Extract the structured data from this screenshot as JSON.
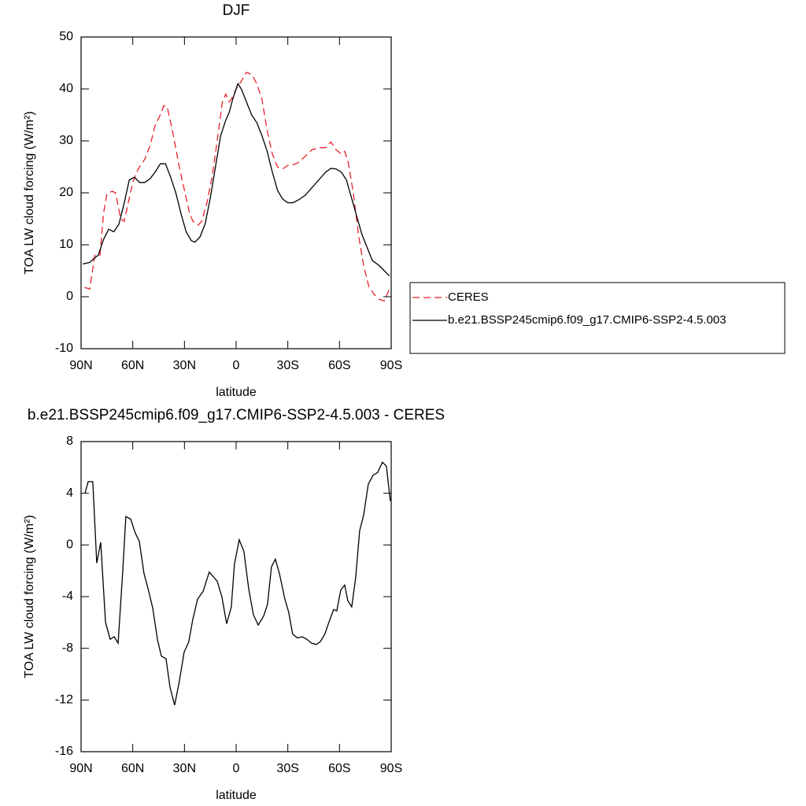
{
  "chart_data": [
    {
      "type": "line",
      "title": "DJF",
      "xlabel": "latitude",
      "ylabel": "TOA LW cloud forcing (W/m²)",
      "xlim": [
        90,
        -90
      ],
      "ylim": [
        -10,
        50
      ],
      "xticks": [
        {
          "value": 90,
          "label": "90N"
        },
        {
          "value": 60,
          "label": "60N"
        },
        {
          "value": 30,
          "label": "30N"
        },
        0,
        {
          "value": -30,
          "label": "30S"
        },
        {
          "value": -60,
          "label": "60S"
        },
        {
          "value": -90,
          "label": "90S"
        }
      ],
      "yticks": [
        -10,
        0,
        10,
        20,
        30,
        40,
        50
      ],
      "legend": "right",
      "series": [
        {
          "name": "CERES",
          "color": "#e8202a",
          "line_style": "dashed",
          "x": [
            88,
            85,
            82,
            79,
            77,
            75,
            72,
            70,
            67,
            65,
            62,
            60,
            57,
            53,
            50,
            47,
            44,
            42,
            40,
            37,
            33,
            30,
            27,
            25,
            22,
            20,
            17,
            14,
            11,
            8,
            6,
            4,
            2,
            0,
            -3,
            -6,
            -9,
            -12,
            -15,
            -18,
            -21,
            -24,
            -27,
            -30,
            -33,
            -36,
            -40,
            -44,
            -48,
            -52,
            -55,
            -58,
            -61,
            -63,
            -65,
            -68,
            -71,
            -74,
            -77,
            -80,
            -83,
            -86,
            -89
          ],
          "values": [
            1.8,
            1.5,
            8,
            8,
            16,
            19.8,
            20.3,
            20,
            15,
            14.5,
            19,
            22,
            24.5,
            26.5,
            29,
            33,
            35,
            36.8,
            36.5,
            32,
            25,
            20.5,
            16,
            14.5,
            13.8,
            14.5,
            18,
            23,
            30,
            37.5,
            39,
            37.5,
            38.5,
            40,
            41.5,
            43.2,
            42.8,
            41,
            38,
            32,
            27.5,
            25,
            24.6,
            25.3,
            25.4,
            25.8,
            27,
            28.3,
            28.7,
            28.7,
            29.8,
            28.3,
            27.5,
            28,
            26,
            20,
            12,
            6,
            2,
            0.5,
            -0.5,
            -0.8,
            1.5
          ]
        },
        {
          "name": "b.e21.BSSP245cmip6.f09_g17.CMIP6-SSP2-4.5.003",
          "color": "#000000",
          "line_style": "solid",
          "x": [
            89,
            85,
            82,
            80,
            77,
            74,
            71,
            68,
            65,
            62,
            59,
            56,
            53,
            50,
            47,
            44,
            41,
            38,
            35,
            32,
            29,
            26,
            24,
            21,
            18,
            15,
            12,
            9,
            6,
            4,
            2,
            0,
            -1,
            -3,
            -6,
            -9,
            -12,
            -15,
            -18,
            -21,
            -24,
            -27,
            -30,
            -33,
            -36,
            -40,
            -44,
            -48,
            -52,
            -55,
            -58,
            -61,
            -64,
            -67,
            -70,
            -73,
            -76,
            -79,
            -83,
            -86,
            -89
          ],
          "values": [
            6.3,
            6.6,
            7.5,
            8,
            11,
            13,
            12.5,
            14,
            18,
            22.5,
            23,
            22,
            22,
            22.7,
            24,
            25.6,
            25.6,
            23,
            20,
            16,
            12.5,
            10.8,
            10.5,
            11.5,
            14,
            19,
            25,
            31,
            34,
            35.5,
            38,
            40,
            41,
            40,
            37.5,
            35,
            33.5,
            31,
            28,
            24,
            20.5,
            18.8,
            18.1,
            18.1,
            18.6,
            19.5,
            21,
            22.5,
            24,
            24.7,
            24.6,
            24,
            22.5,
            19,
            15.5,
            12,
            9.5,
            7,
            6,
            5,
            4
          ]
        }
      ]
    },
    {
      "type": "line",
      "title": "b.e21.BSSP245cmip6.f09_g17.CMIP6-SSP2-4.5.003 - CERES",
      "xlabel": "latitude",
      "ylabel": "TOA LW cloud forcing (W/m²)",
      "xlim": [
        90,
        -90
      ],
      "ylim": [
        -16,
        8
      ],
      "xticks": [
        {
          "value": 90,
          "label": "90N"
        },
        {
          "value": 60,
          "label": "60N"
        },
        {
          "value": 30,
          "label": "30N"
        },
        0,
        {
          "value": -30,
          "label": "30S"
        },
        {
          "value": -60,
          "label": "60S"
        },
        {
          "value": -90,
          "label": "90S"
        }
      ],
      "yticks": [
        -16,
        -12,
        -8,
        -4,
        0,
        4,
        8
      ],
      "series": [
        {
          "color": "#000000",
          "line_style": "solid",
          "x": [
            87.7,
            85.9,
            83.2,
            80.9,
            78.6,
            75.8,
            73.1,
            70.8,
            68.5,
            65.8,
            64,
            61.2,
            58.5,
            56.2,
            53.5,
            50.7,
            48.4,
            45.7,
            43.4,
            40.7,
            38.4,
            35.7,
            32.9,
            30.2,
            27.5,
            25.2,
            22.4,
            19.2,
            15.6,
            11,
            8.3,
            5.5,
            2.8,
            1,
            -1.8,
            -4.5,
            -7.3,
            -10,
            -12.8,
            -16,
            -18.2,
            -20.5,
            -22.8,
            -25.1,
            -28.3,
            -30.5,
            -32.8,
            -35.6,
            -38.3,
            -41,
            -43.8,
            -46.5,
            -48.8,
            -51.5,
            -53.8,
            -56.6,
            -58.4,
            -60.7,
            -63,
            -64.8,
            -67.1,
            -69.4,
            -71.7,
            -74,
            -76.7,
            -79.5,
            -82.1,
            -84.9,
            -87.2,
            -89.5
          ],
          "values": [
            4,
            4.9,
            4.9,
            -1.4,
            0.2,
            -6,
            -7.3,
            -7.1,
            -7.6,
            -2,
            2.2,
            2,
            0.9,
            0.3,
            -2.2,
            -3.6,
            -4.9,
            -7.3,
            -8.6,
            -8.8,
            -11,
            -12.4,
            -10.5,
            -8.3,
            -7.5,
            -5.8,
            -4.2,
            -3.6,
            -2.1,
            -2.8,
            -4,
            -6.1,
            -4.8,
            -1.5,
            0.4,
            -0.5,
            -3.4,
            -5.4,
            -6.2,
            -5.5,
            -4.6,
            -1.7,
            -1.1,
            -2.2,
            -4.2,
            -5.2,
            -6.9,
            -7.2,
            -7.1,
            -7.3,
            -7.6,
            -7.7,
            -7.5,
            -6.9,
            -6,
            -5,
            -5.1,
            -3.5,
            -3.1,
            -4.3,
            -4.8,
            -2.5,
            1.1,
            2.3,
            4.7,
            5.4,
            5.6,
            6.4,
            6.1,
            3.4
          ]
        }
      ]
    }
  ]
}
